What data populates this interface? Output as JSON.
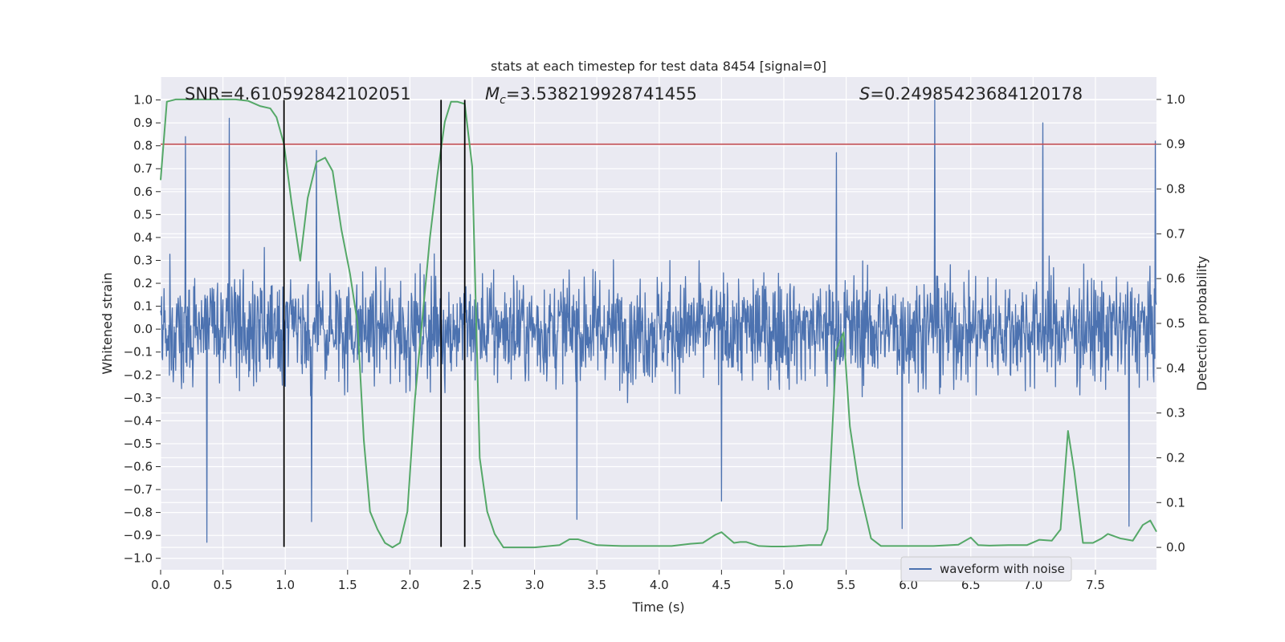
{
  "chart_data": {
    "type": "line",
    "title": "stats at each timestep for test data 8454 [signal=0]",
    "xlabel": "Time (s)",
    "ylabel": "Whitened strain",
    "y2label": "Detection probability",
    "xlim": [
      0.0,
      7.99
    ],
    "ylim": [
      -1.05,
      1.1
    ],
    "y2lim": [
      -0.05,
      1.05
    ],
    "xticks": [
      "0.0",
      "0.5",
      "1.0",
      "1.5",
      "2.0",
      "2.5",
      "3.0",
      "3.5",
      "4.0",
      "4.5",
      "5.0",
      "5.5",
      "6.0",
      "6.5",
      "7.0",
      "7.5"
    ],
    "yticks": [
      "1.0",
      "0.9",
      "0.8",
      "0.7",
      "0.6",
      "0.5",
      "0.4",
      "0.3",
      "0.2",
      "0.1",
      "0.0",
      "−0.1",
      "−0.2",
      "−0.3",
      "−0.4",
      "−0.5",
      "−0.6",
      "−0.7",
      "−0.8",
      "−0.9",
      "−1.0"
    ],
    "y2ticks": [
      "1.0",
      "0.9",
      "0.8",
      "0.7",
      "0.6",
      "0.5",
      "0.4",
      "0.3",
      "0.2",
      "0.1",
      "0.0"
    ],
    "annotations": {
      "snr": "SNR=4.610592842102051",
      "mc": "ℳc=3.538219928741455",
      "mc_symbol": "M",
      "mc_sub": "c",
      "mc_value": "=3.538219928741455",
      "s_symbol": "S",
      "s_value": "=0.24985423684120178"
    },
    "threshold": {
      "value": 0.9,
      "axis": "right",
      "color": "#c44e52"
    },
    "vertical_lines": [
      0.99,
      2.25,
      2.44
    ],
    "vertical_line_range": [
      -0.95,
      1.0
    ],
    "legend": {
      "label": "waveform with noise",
      "location": "lower-right",
      "color": "#4c72b0"
    },
    "strain_series": {
      "name": "waveform with noise",
      "color": "#4c72b0",
      "samples_per_second": 256,
      "envelope_peaks": [
        {
          "x": 0.37,
          "y": -0.93
        },
        {
          "x": 0.55,
          "y": 0.92
        },
        {
          "x": 0.2,
          "y": 0.84
        },
        {
          "x": 1.21,
          "y": -0.84
        },
        {
          "x": 1.25,
          "y": 0.78
        },
        {
          "x": 3.34,
          "y": -0.83
        },
        {
          "x": 4.5,
          "y": -0.75
        },
        {
          "x": 5.42,
          "y": -0.88
        },
        {
          "x": 5.42,
          "y": 0.77
        },
        {
          "x": 5.95,
          "y": -0.87
        },
        {
          "x": 6.21,
          "y": 1.0
        },
        {
          "x": 7.08,
          "y": 0.9
        },
        {
          "x": 7.98,
          "y": 0.82
        },
        {
          "x": 7.77,
          "y": -0.86
        }
      ]
    },
    "probability_series": {
      "name": "detection probability",
      "color": "#55a868",
      "x": [
        0.0,
        0.05,
        0.12,
        0.2,
        0.3,
        0.4,
        0.5,
        0.6,
        0.7,
        0.8,
        0.88,
        0.93,
        0.99,
        1.05,
        1.12,
        1.18,
        1.25,
        1.32,
        1.38,
        1.45,
        1.52,
        1.58,
        1.63,
        1.68,
        1.74,
        1.8,
        1.86,
        1.92,
        1.98,
        2.04,
        2.1,
        2.16,
        2.22,
        2.28,
        2.33,
        2.38,
        2.44,
        2.5,
        2.56,
        2.62,
        2.68,
        2.75,
        2.85,
        3.0,
        3.2,
        3.28,
        3.35,
        3.5,
        3.7,
        3.9,
        4.1,
        4.25,
        4.35,
        4.45,
        4.5,
        4.6,
        4.65,
        4.7,
        4.8,
        4.9,
        5.0,
        5.1,
        5.2,
        5.3,
        5.35,
        5.42,
        5.48,
        5.53,
        5.6,
        5.7,
        5.78,
        5.85,
        6.0,
        6.2,
        6.4,
        6.5,
        6.56,
        6.65,
        6.8,
        6.95,
        7.05,
        7.15,
        7.22,
        7.28,
        7.33,
        7.4,
        7.48,
        7.55,
        7.6,
        7.7,
        7.8,
        7.88,
        7.94,
        7.99
      ],
      "values": [
        0.82,
        0.995,
        1.0,
        1.0,
        1.0,
        1.0,
        1.0,
        1.0,
        0.997,
        0.985,
        0.98,
        0.96,
        0.9,
        0.77,
        0.64,
        0.78,
        0.86,
        0.87,
        0.84,
        0.71,
        0.61,
        0.5,
        0.24,
        0.08,
        0.04,
        0.01,
        0.0,
        0.01,
        0.08,
        0.33,
        0.51,
        0.69,
        0.83,
        0.95,
        0.995,
        0.995,
        0.99,
        0.85,
        0.2,
        0.08,
        0.03,
        0.0,
        0.0,
        0.0,
        0.005,
        0.018,
        0.018,
        0.005,
        0.003,
        0.003,
        0.003,
        0.008,
        0.01,
        0.028,
        0.034,
        0.01,
        0.012,
        0.012,
        0.003,
        0.002,
        0.002,
        0.003,
        0.005,
        0.005,
        0.04,
        0.44,
        0.48,
        0.27,
        0.14,
        0.02,
        0.003,
        0.003,
        0.003,
        0.003,
        0.006,
        0.022,
        0.005,
        0.004,
        0.005,
        0.005,
        0.017,
        0.015,
        0.04,
        0.26,
        0.17,
        0.01,
        0.01,
        0.02,
        0.03,
        0.02,
        0.015,
        0.05,
        0.06,
        0.035
      ]
    },
    "colors": {
      "plot_bg": "#eaeaf2",
      "grid": "#ffffff",
      "vline": "#000000",
      "text": "#262626"
    }
  }
}
